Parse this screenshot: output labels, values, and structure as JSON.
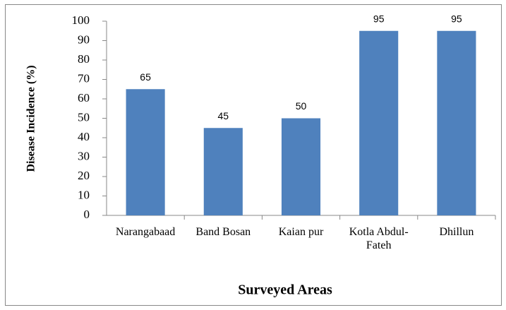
{
  "chart_data": {
    "type": "bar",
    "categories": [
      "Narangabaad",
      "Band Bosan",
      "Kaian pur",
      "Kotla Abdul-Fateh",
      "Dhillun"
    ],
    "values": [
      65,
      45,
      50,
      95,
      95
    ],
    "color": "#4f81bd",
    "ylim": [
      0,
      100
    ],
    "yticks": [
      0,
      10,
      20,
      30,
      40,
      50,
      60,
      70,
      80,
      90,
      100
    ],
    "grid": false,
    "ylabel": "Disease Incidence (%)",
    "xlabel": "Surveyed Areas"
  }
}
